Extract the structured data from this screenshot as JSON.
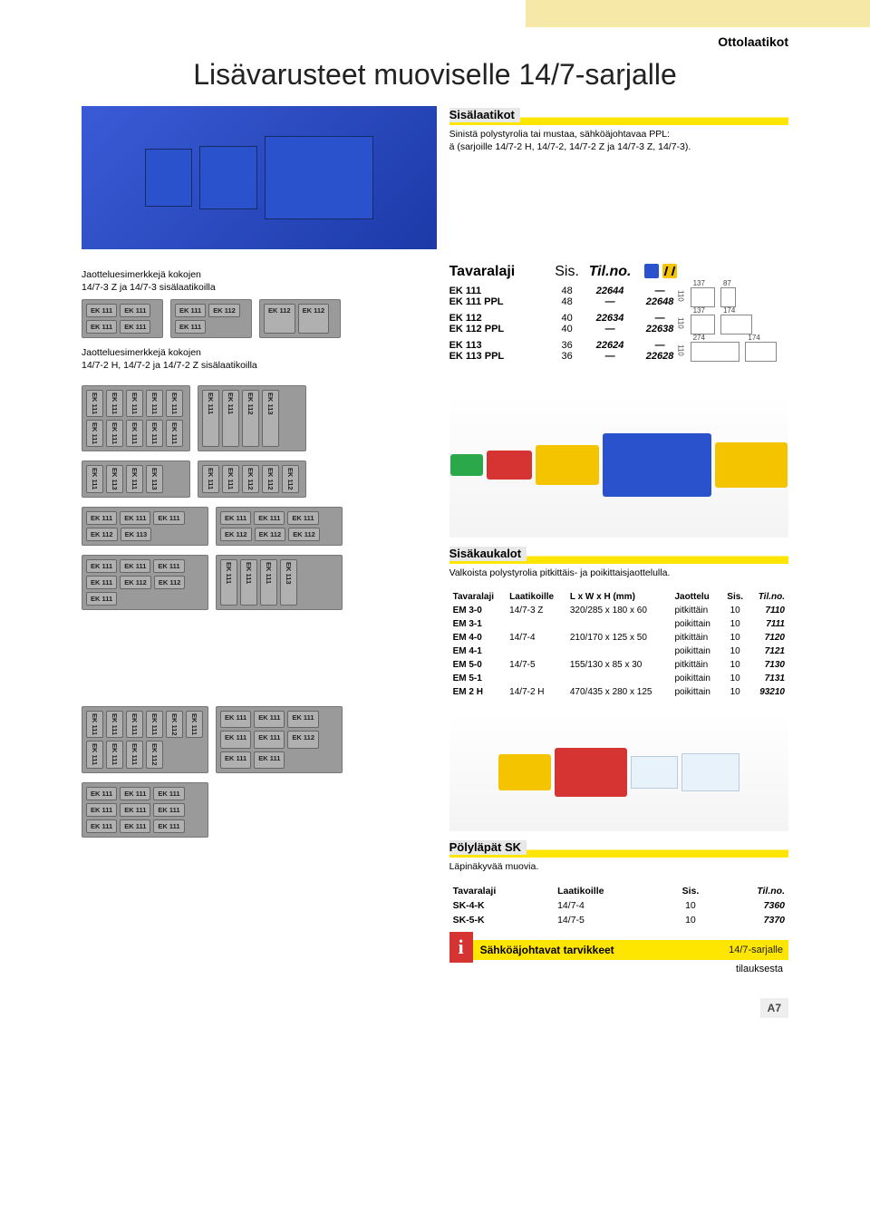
{
  "breadcrumb": "Ottolaatikot",
  "title": "Lisävarusteet muoviselle 14/7-sarjalle",
  "section1": {
    "heading": "Sisälaatikot",
    "desc": "Sinistä polystyrolia tai mustaa, sähköäjohtavaa PPL:\nä (sarjoille 14/7-2 H, 14/7-2, 14/7-2 Z ja 14/7-3 Z, 14/7-3).",
    "caption1": "Jaotteluesimerkkejä kokojen\n14/7-3 Z ja 14/7-3 sisälaatikoilla",
    "caption2": "Jaotteluesimerkkejä kokojen\n14/7-2 H, 14/7-2 ja 14/7-2 Z sisälaatikoilla",
    "header": {
      "c1": "Tavaralaji",
      "c2": "Sis.",
      "c3": "Til.no."
    },
    "rows": [
      [
        {
          "c1": "EK 111",
          "c2": "48",
          "c3": "22644",
          "c4": "—"
        },
        {
          "c1": "EK 111 PPL",
          "c2": "48",
          "c3": "—",
          "c4": "22648"
        }
      ],
      [
        {
          "c1": "EK 112",
          "c2": "40",
          "c3": "22634",
          "c4": "—"
        },
        {
          "c1": "EK 112 PPL",
          "c2": "40",
          "c3": "—",
          "c4": "22638"
        }
      ],
      [
        {
          "c1": "EK 113",
          "c2": "36",
          "c3": "22624",
          "c4": "—"
        },
        {
          "c1": "EK 113 PPL",
          "c2": "36",
          "c3": "—",
          "c4": "22628"
        }
      ]
    ],
    "dims": [
      {
        "w1": "137",
        "h": "110",
        "w2": "87"
      },
      {
        "w1": "137",
        "h": "110",
        "w2": "174"
      },
      {
        "w1": "274",
        "h": "110",
        "w2": "174"
      }
    ]
  },
  "section2": {
    "heading": "Sisäkaukalot",
    "desc": "Valkoista polystyrolia pitkittäis- ja poikittaisjaottelulla.",
    "header": [
      "Tavaralaji",
      "Laatikoille",
      "L x W x H (mm)",
      "Jaottelu",
      "Sis.",
      "Til.no."
    ],
    "rows": [
      [
        "EM 3-0",
        "14/7-3 Z",
        "320/285 x 180 x  60",
        "pitkittäin",
        "10",
        "7110"
      ],
      [
        "EM 3-1",
        "",
        "",
        "poikittain",
        "10",
        "7111"
      ],
      [
        "EM 4-0",
        "14/7-4",
        "210/170 x 125 x  50",
        "pitkittäin",
        "10",
        "7120"
      ],
      [
        "EM 4-1",
        "",
        "",
        "poikittain",
        "10",
        "7121"
      ],
      [
        "EM 5-0",
        "14/7-5",
        "155/130 x  85 x  30",
        "pitkittäin",
        "10",
        "7130"
      ],
      [
        "EM 5-1",
        "",
        "",
        "poikittain",
        "10",
        "7131"
      ],
      [
        "EM 2 H",
        "14/7-2 H",
        "470/435 x 280 x 125",
        "poikittain",
        "10",
        "93210"
      ]
    ]
  },
  "section3": {
    "heading": "Pölyläpät SK",
    "desc": "Läpinäkyvää muovia.",
    "header": [
      "Tavaralaji",
      "Laatikoille",
      "Sis.",
      "Til.no."
    ],
    "rows": [
      [
        "SK-4-K",
        "14/7-4",
        "10",
        "7360"
      ],
      [
        "SK-5-K",
        "14/7-5",
        "10",
        "7370"
      ]
    ]
  },
  "info": {
    "text": "Sähköäjohtavat tarvikkeet",
    "right": "14/7-sarjalle",
    "sub": "tilauksesta"
  },
  "labels": {
    "ek111": "EK 111",
    "ek112": "EK 112",
    "ek113": "EK 113"
  },
  "page_num": "A7",
  "colors": {
    "yellow_band": "#f6e9a8",
    "accent_yellow": "#ffe600",
    "blue": "#2a52cc",
    "red": "#d63333",
    "green": "#2aa84a",
    "tray_yellow": "#f4c400"
  }
}
